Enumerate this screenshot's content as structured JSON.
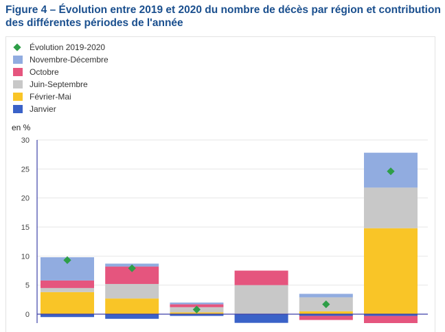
{
  "title": "Figure 4 – Évolution entre 2019 et 2020 du nombre de décès par région et contribution des différentes périodes de l'année",
  "colors": {
    "title": "#1a4f8e",
    "evolution_marker": "#2e9e48",
    "axis": "#3b3fa6",
    "grid": "#e6e6e6"
  },
  "chart_data": {
    "type": "bar",
    "stacked": true,
    "ylabel": "en %",
    "ylim": [
      -1.5,
      30
    ],
    "yticks": [
      0,
      5,
      10,
      15,
      20,
      25,
      30
    ],
    "grid": true,
    "legend_position": "top-left",
    "legend": [
      {
        "label": "Évolution 2019-2020",
        "color": "#2e9e48",
        "marker": "diamond"
      },
      {
        "label": "Novembre-Décembre",
        "color": "#91ace0",
        "marker": "square"
      },
      {
        "label": "Octobre",
        "color": "#e5557e",
        "marker": "square"
      },
      {
        "label": "Juin-Septembre",
        "color": "#c8c8c8",
        "marker": "square"
      },
      {
        "label": "Février-Mai",
        "color": "#f9c527",
        "marker": "square"
      },
      {
        "label": "Janvier",
        "color": "#3a62c8",
        "marker": "square"
      }
    ],
    "categories": [
      "",
      "",
      "",
      "",
      "",
      ""
    ],
    "series": [
      {
        "name": "Janvier",
        "color": "#3a62c8",
        "values": [
          -0.5,
          -0.8,
          -0.3,
          -1.5,
          -0.3,
          -0.3
        ]
      },
      {
        "name": "Février-Mai",
        "color": "#f9c527",
        "values": [
          3.8,
          2.7,
          0.3,
          0.0,
          0.5,
          14.8
        ]
      },
      {
        "name": "Juin-Septembre",
        "color": "#c8c8c8",
        "values": [
          0.7,
          2.5,
          0.9,
          5.0,
          2.4,
          7.0
        ]
      },
      {
        "name": "Octobre",
        "color": "#e5557e",
        "values": [
          1.3,
          3.0,
          0.5,
          2.5,
          -0.7,
          -1.5
        ]
      },
      {
        "name": "Novembre-Décembre",
        "color": "#91ace0",
        "values": [
          4.0,
          0.5,
          0.3,
          0.0,
          0.6,
          6.0
        ]
      }
    ],
    "evolution": [
      9.3,
      7.9,
      0.8,
      null,
      1.7,
      24.6
    ]
  }
}
